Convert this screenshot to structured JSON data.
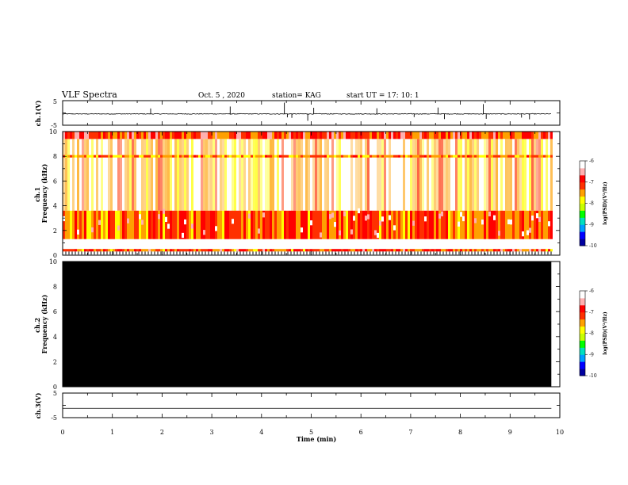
{
  "header": {
    "title": "VLF Spectra",
    "date": "Oct. 5 , 2020",
    "station": "station= KAG",
    "start": "start UT = 17: 10: 1"
  },
  "chart_data": [
    {
      "type": "line",
      "panel": "ch1-waveform",
      "ylabel": "ch.1(V)",
      "y_ticks": [
        "5",
        "-5"
      ],
      "ylim": [
        -5,
        5
      ],
      "xlim": [
        0,
        10
      ],
      "trace_end_min": 9.83,
      "baseline_v": -0.4,
      "noise_v": 0.15,
      "spikes": [
        {
          "x": 1.77,
          "y": 1.8
        },
        {
          "x": 3.37,
          "y": 2.6
        },
        {
          "x": 4.46,
          "y": 4.2
        },
        {
          "x": 4.52,
          "y": -1.8
        },
        {
          "x": 4.61,
          "y": -2.0
        },
        {
          "x": 4.93,
          "y": -3.2
        },
        {
          "x": 5.05,
          "y": 2.1
        },
        {
          "x": 6.32,
          "y": 1.9
        },
        {
          "x": 7.07,
          "y": -1.7
        },
        {
          "x": 7.55,
          "y": 2.2
        },
        {
          "x": 7.68,
          "y": -2.5
        },
        {
          "x": 8.46,
          "y": 3.6
        },
        {
          "x": 8.52,
          "y": -2.4
        },
        {
          "x": 9.23,
          "y": -1.9
        },
        {
          "x": 9.39,
          "y": -2.6
        }
      ]
    },
    {
      "type": "heatmap",
      "panel": "ch1-spectrogram",
      "ylabel": "ch.1 Frequency (kHz)",
      "yticks": [
        0,
        2,
        4,
        6,
        8,
        10
      ],
      "ylim": [
        0,
        10
      ],
      "xlim": [
        0,
        9.83
      ],
      "bands_khz": [
        {
          "from": 9.4,
          "to": 10.0,
          "level": -6.8
        },
        {
          "from": 7.9,
          "to": 8.1,
          "level": -7.2
        },
        {
          "from": 1.3,
          "to": 3.6,
          "level": -7.0
        },
        {
          "from": 0.3,
          "to": 0.5,
          "level": -6.9
        }
      ]
    },
    {
      "type": "heatmap",
      "panel": "ch2-spectrogram",
      "ylabel": "ch.2 Frequency (kHz)",
      "yticks": [
        0,
        2,
        4,
        6,
        8,
        10
      ],
      "ylim": [
        0,
        10
      ],
      "xlim": [
        0,
        9.83
      ],
      "fill": "#000000"
    },
    {
      "type": "line",
      "panel": "ch3-waveform",
      "ylabel": "ch.3(V)",
      "y_ticks": [
        "5",
        "-5"
      ],
      "ylim": [
        -5,
        5
      ],
      "xlim": [
        0,
        9.83
      ],
      "baseline_v": -1.2
    }
  ],
  "x_axis": {
    "label": "Time (min)",
    "ticks": [
      "0",
      "1",
      "2",
      "3",
      "4",
      "5",
      "6",
      "7",
      "8",
      "9",
      "10"
    ],
    "xlim": [
      0,
      10
    ]
  },
  "colorbar": {
    "label": "log(PSD)(V²/Hz)",
    "ticks": [
      "-6",
      "-7",
      "-8",
      "-9",
      "-10"
    ],
    "range": [
      -10,
      -6
    ],
    "colors": [
      "#0000a0",
      "#0000ff",
      "#00a0ff",
      "#00e0c0",
      "#00ff00",
      "#c8ff00",
      "#ffff00",
      "#ffa000",
      "#ff3000",
      "#ff0000",
      "#ffb0b0",
      "#ffffff"
    ]
  }
}
